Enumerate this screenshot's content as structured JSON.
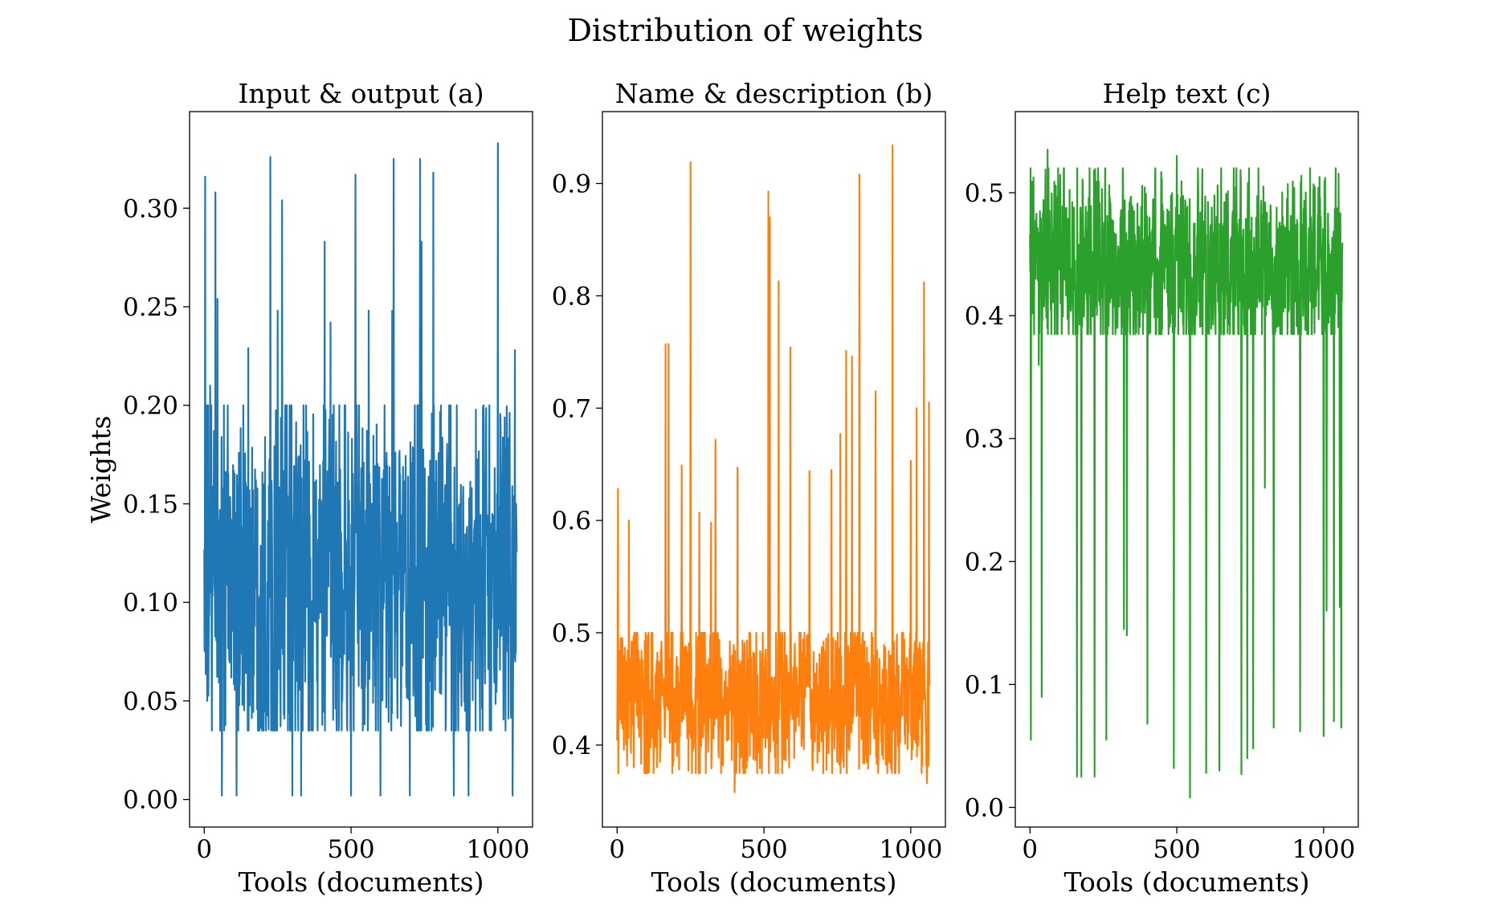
{
  "figure_title": "Distribution of weights",
  "chart_data": [
    {
      "type": "line",
      "panel": "a",
      "title": "Input & output (a)",
      "xlabel": "Tools (documents)",
      "ylabel": "Weights",
      "color": "#1f77b4",
      "n_points": 1065,
      "xlim": [
        -50,
        1118
      ],
      "ylim": [
        -0.014,
        0.349
      ],
      "xticks": [
        0,
        500,
        1000
      ],
      "xtick_labels": [
        "0",
        "500",
        "1000"
      ],
      "yticks": [
        0.0,
        0.05,
        0.1,
        0.15,
        0.2,
        0.25,
        0.3
      ],
      "ytick_labels": [
        "0.00",
        "0.05",
        "0.10",
        "0.15",
        "0.20",
        "0.25",
        "0.30"
      ],
      "baseline": {
        "min": 0.035,
        "max": 0.2,
        "center": 0.11
      },
      "extremes": [
        [
          3,
          0.316
        ],
        [
          10,
          0.05
        ],
        [
          20,
          0.21
        ],
        [
          38,
          0.308
        ],
        [
          45,
          0.254
        ],
        [
          60,
          0.002
        ],
        [
          110,
          0.002
        ],
        [
          150,
          0.229
        ],
        [
          225,
          0.326
        ],
        [
          250,
          0.248
        ],
        [
          265,
          0.304
        ],
        [
          300,
          0.002
        ],
        [
          330,
          0.002
        ],
        [
          410,
          0.283
        ],
        [
          430,
          0.242
        ],
        [
          500,
          0.002
        ],
        [
          515,
          0.317
        ],
        [
          560,
          0.248
        ],
        [
          600,
          0.002
        ],
        [
          640,
          0.248
        ],
        [
          645,
          0.325
        ],
        [
          700,
          0.002
        ],
        [
          735,
          0.325
        ],
        [
          740,
          0.283
        ],
        [
          780,
          0.318
        ],
        [
          850,
          0.002
        ],
        [
          900,
          0.002
        ],
        [
          1000,
          0.333
        ],
        [
          1050,
          0.002
        ],
        [
          1058,
          0.228
        ]
      ]
    },
    {
      "type": "line",
      "panel": "b",
      "title": "Name & description (b)",
      "xlabel": "Tools (documents)",
      "ylabel": "",
      "color": "#ff7f0e",
      "n_points": 1065,
      "xlim": [
        -50,
        1118
      ],
      "ylim": [
        0.327,
        0.964
      ],
      "xticks": [
        0,
        500,
        1000
      ],
      "xtick_labels": [
        "0",
        "500",
        "1000"
      ],
      "yticks": [
        0.4,
        0.5,
        0.6,
        0.7,
        0.8,
        0.9
      ],
      "ytick_labels": [
        "0.4",
        "0.5",
        "0.6",
        "0.7",
        "0.8",
        "0.9"
      ],
      "baseline": {
        "min": 0.375,
        "max": 0.5,
        "center": 0.44
      },
      "extremes": [
        [
          3,
          0.628
        ],
        [
          40,
          0.6
        ],
        [
          165,
          0.757
        ],
        [
          175,
          0.757
        ],
        [
          220,
          0.649
        ],
        [
          250,
          0.919
        ],
        [
          280,
          0.607
        ],
        [
          320,
          0.598
        ],
        [
          335,
          0.672
        ],
        [
          400,
          0.358
        ],
        [
          410,
          0.647
        ],
        [
          515,
          0.893
        ],
        [
          520,
          0.87
        ],
        [
          550,
          0.813
        ],
        [
          590,
          0.754
        ],
        [
          655,
          0.644
        ],
        [
          730,
          0.645
        ],
        [
          760,
          0.677
        ],
        [
          780,
          0.751
        ],
        [
          800,
          0.746
        ],
        [
          825,
          0.908
        ],
        [
          880,
          0.715
        ],
        [
          938,
          0.934
        ],
        [
          1000,
          0.653
        ],
        [
          1020,
          0.7
        ],
        [
          1045,
          0.812
        ],
        [
          1055,
          0.366
        ],
        [
          1062,
          0.705
        ]
      ]
    },
    {
      "type": "line",
      "panel": "c",
      "title": "Help text (c)",
      "xlabel": "Tools (documents)",
      "ylabel": "",
      "color": "#2ca02c",
      "n_points": 1065,
      "xlim": [
        -50,
        1118
      ],
      "ylim": [
        -0.016,
        0.566
      ],
      "xticks": [
        0,
        500,
        1000
      ],
      "xtick_labels": [
        "0",
        "500",
        "1000"
      ],
      "yticks": [
        0.0,
        0.1,
        0.2,
        0.3,
        0.4,
        0.5
      ],
      "ytick_labels": [
        "0.0",
        "0.1",
        "0.2",
        "0.3",
        "0.4",
        "0.5"
      ],
      "baseline": {
        "min": 0.385,
        "max": 0.52,
        "center": 0.44
      },
      "extremes": [
        [
          3,
          0.055
        ],
        [
          30,
          0.36
        ],
        [
          40,
          0.09
        ],
        [
          60,
          0.535
        ],
        [
          160,
          0.025
        ],
        [
          175,
          0.025
        ],
        [
          220,
          0.025
        ],
        [
          260,
          0.055
        ],
        [
          320,
          0.145
        ],
        [
          330,
          0.14
        ],
        [
          400,
          0.068
        ],
        [
          490,
          0.032
        ],
        [
          500,
          0.53
        ],
        [
          545,
          0.008
        ],
        [
          600,
          0.028
        ],
        [
          645,
          0.03
        ],
        [
          720,
          0.027
        ],
        [
          740,
          0.04
        ],
        [
          760,
          0.048
        ],
        [
          800,
          0.26
        ],
        [
          830,
          0.065
        ],
        [
          920,
          0.062
        ],
        [
          1000,
          0.058
        ],
        [
          1010,
          0.16
        ],
        [
          1035,
          0.07
        ],
        [
          1055,
          0.163
        ],
        [
          1060,
          0.065
        ]
      ]
    }
  ]
}
